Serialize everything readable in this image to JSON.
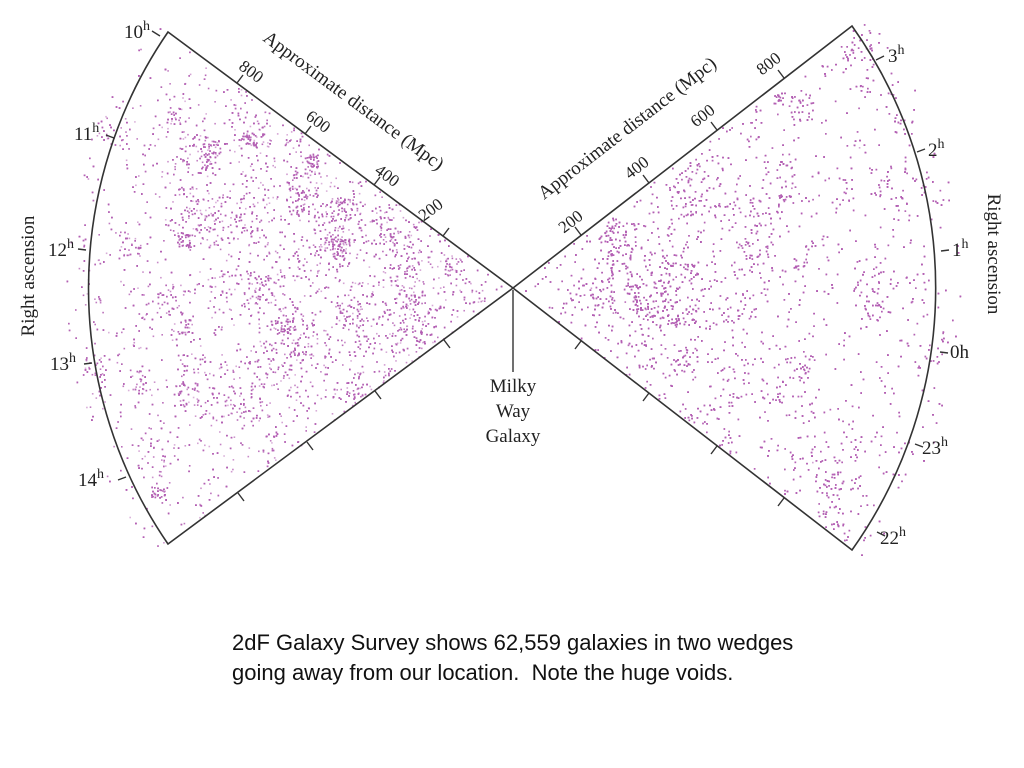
{
  "figure": {
    "point_color": "#b35fb3",
    "line_color": "#333333",
    "left_wedge": {
      "axis_title": "Approximate distance (Mpc)",
      "distance_ticks": [
        "200",
        "400",
        "600",
        "800"
      ],
      "side_label": "Right ascension",
      "hour_labels": [
        {
          "num": "10",
          "unit": "h"
        },
        {
          "num": "11",
          "unit": "h"
        },
        {
          "num": "12",
          "unit": "h"
        },
        {
          "num": "13",
          "unit": "h"
        },
        {
          "num": "14",
          "unit": "h"
        }
      ]
    },
    "right_wedge": {
      "axis_title": "Approximate distance (Mpc)",
      "distance_ticks": [
        "200",
        "400",
        "600",
        "800"
      ],
      "side_label": "Right ascension",
      "hour_labels": [
        {
          "num": "3",
          "unit": "h"
        },
        {
          "num": "2",
          "unit": "h"
        },
        {
          "num": "1",
          "unit": "h"
        },
        {
          "num": "0",
          "unit": "h"
        },
        {
          "num": "23",
          "unit": "h"
        },
        {
          "num": "22",
          "unit": "h"
        }
      ]
    },
    "center_label": [
      "Milky",
      "Way",
      "Galaxy"
    ]
  },
  "caption": {
    "line1": "2dF Galaxy Survey shows 62,559 galaxies in two wedges",
    "line2": "going away from our location.  Note the huge voids."
  }
}
